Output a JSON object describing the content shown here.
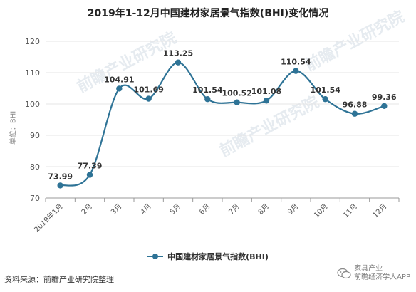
{
  "title": "2019年1-12月中国建材家居景气指数(BHI)变化情况",
  "source": "资料来源：前瞻产业研究院整理",
  "watermark": {
    "text": "前瞻产业研究院",
    "badge_line1": "家具产业",
    "badge_line2": "前瞻经济学人APP"
  },
  "colors": {
    "series": "#2e7396",
    "grid": "#e6e6e6",
    "axis": "#999999"
  },
  "chart_data": {
    "type": "line",
    "title": "2019年1-12月中国建材家居景气指数(BHI)变化情况",
    "xlabel": "",
    "ylabel": "单位：BHI",
    "categories": [
      "2019年1月",
      "2月",
      "3月",
      "4月",
      "5月",
      "6月",
      "7月",
      "8月",
      "9月",
      "10月",
      "11月",
      "12月"
    ],
    "series": [
      {
        "name": "中国建材家居景气指数(BHI)",
        "values": [
          73.99,
          77.39,
          104.91,
          101.69,
          113.25,
          101.54,
          100.52,
          101.08,
          110.54,
          101.54,
          96.88,
          99.36
        ],
        "labels": [
          "73.99",
          "77.39",
          "104.91",
          "101.69",
          "113.25",
          "101.54",
          "100.52",
          "101.08",
          "110.54",
          "101.54",
          "96.88",
          "99.36"
        ]
      }
    ],
    "ylim": [
      70,
      120
    ],
    "yticks": [
      70,
      80,
      90,
      100,
      110,
      120
    ],
    "grid": true,
    "legend": "bottom"
  }
}
